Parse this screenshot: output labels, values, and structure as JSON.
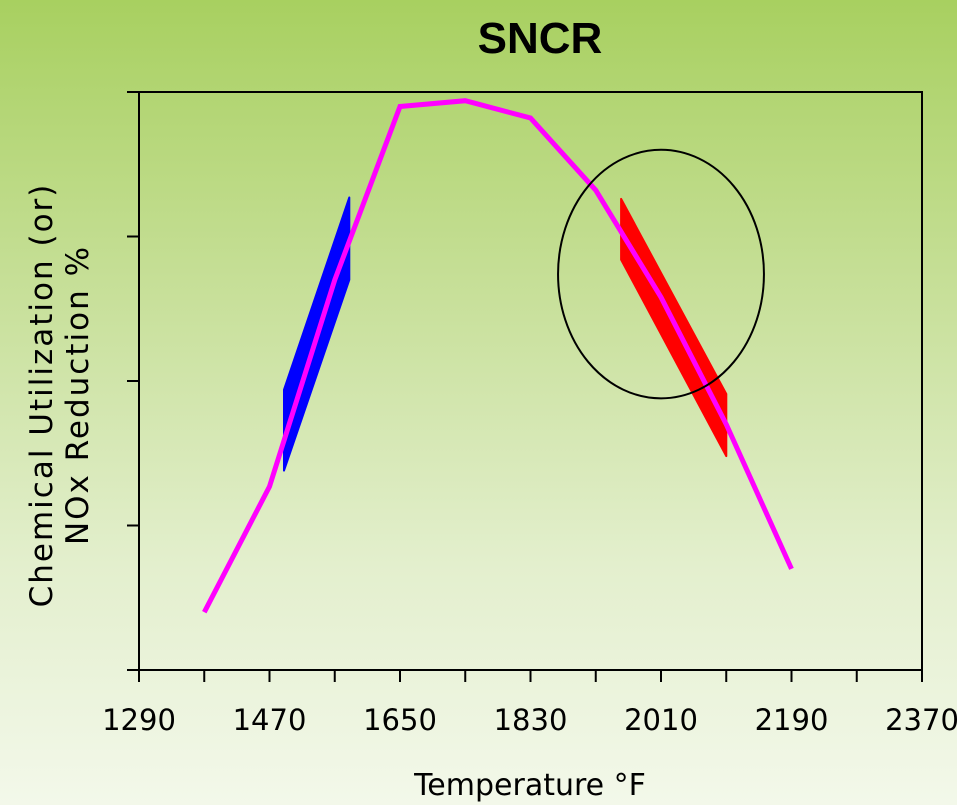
{
  "chart_data": {
    "type": "line",
    "title": "SNCR",
    "xlabel": "Temperature °F",
    "ylabel_lines": [
      "Chemical Utilization (or)",
      "NOx Reduction %"
    ],
    "xlim": [
      1290,
      2370
    ],
    "ylim": [
      0,
      4
    ],
    "x_tick_labels": [
      1290,
      1470,
      1650,
      1830,
      2010,
      2190,
      2370
    ],
    "x_minor_ticks": [
      1380,
      1560,
      1740,
      1920,
      2100,
      2280
    ],
    "y_ticks": [
      0,
      1,
      2,
      3,
      4
    ],
    "y_tick_labels_shown": false,
    "grid": false,
    "series": [
      {
        "color": "#ff00ff",
        "x": [
          1380,
          1470,
          1560,
          1650,
          1740,
          1830,
          1920,
          2010,
          2100,
          2190
        ],
        "y": [
          0.4,
          1.27,
          2.7,
          3.9,
          3.94,
          3.82,
          3.32,
          2.58,
          1.7,
          0.7
        ]
      }
    ],
    "highlight_bands": [
      {
        "color": "#0000ff",
        "points": [
          [
            1490,
            1.94
          ],
          [
            1580,
            3.27
          ],
          [
            1580,
            2.7
          ],
          [
            1490,
            1.38
          ]
        ]
      },
      {
        "color": "#ff0000",
        "points": [
          [
            1955,
            3.26
          ],
          [
            2100,
            1.91
          ],
          [
            2100,
            1.48
          ],
          [
            1955,
            2.84
          ]
        ]
      }
    ],
    "annotation_ellipse": {
      "color": "#000000",
      "center": [
        2010,
        2.74
      ],
      "rx_data": 142,
      "ry_data": 0.86
    }
  }
}
